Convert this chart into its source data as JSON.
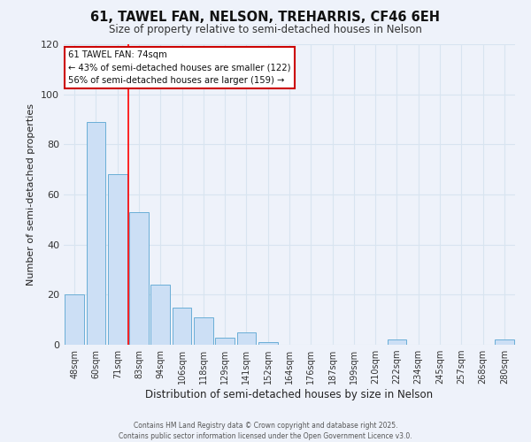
{
  "title": "61, TAWEL FAN, NELSON, TREHARRIS, CF46 6EH",
  "subtitle": "Size of property relative to semi-detached houses in Nelson",
  "xlabel": "Distribution of semi-detached houses by size in Nelson",
  "ylabel": "Number of semi-detached properties",
  "bar_labels": [
    "48sqm",
    "60sqm",
    "71sqm",
    "83sqm",
    "94sqm",
    "106sqm",
    "118sqm",
    "129sqm",
    "141sqm",
    "152sqm",
    "164sqm",
    "176sqm",
    "187sqm",
    "199sqm",
    "210sqm",
    "222sqm",
    "234sqm",
    "245sqm",
    "257sqm",
    "268sqm",
    "280sqm"
  ],
  "bar_values": [
    20,
    89,
    68,
    53,
    24,
    15,
    11,
    3,
    5,
    1,
    0,
    0,
    0,
    0,
    0,
    2,
    0,
    0,
    0,
    0,
    2
  ],
  "bar_color": "#ccdff5",
  "bar_edge_color": "#6aaed6",
  "vline_color": "red",
  "ylim": [
    0,
    120
  ],
  "yticks": [
    0,
    20,
    40,
    60,
    80,
    100,
    120
  ],
  "annotation_title": "61 TAWEL FAN: 74sqm",
  "annotation_line2": "← 43% of semi-detached houses are smaller (122)",
  "annotation_line3": "56% of semi-detached houses are larger (159) →",
  "annotation_box_facecolor": "#ffffff",
  "annotation_box_edgecolor": "#cc0000",
  "footer_line1": "Contains HM Land Registry data © Crown copyright and database right 2025.",
  "footer_line2": "Contains public sector information licensed under the Open Government Licence v3.0.",
  "background_color": "#eef2fa",
  "grid_color": "#d8e4f0"
}
